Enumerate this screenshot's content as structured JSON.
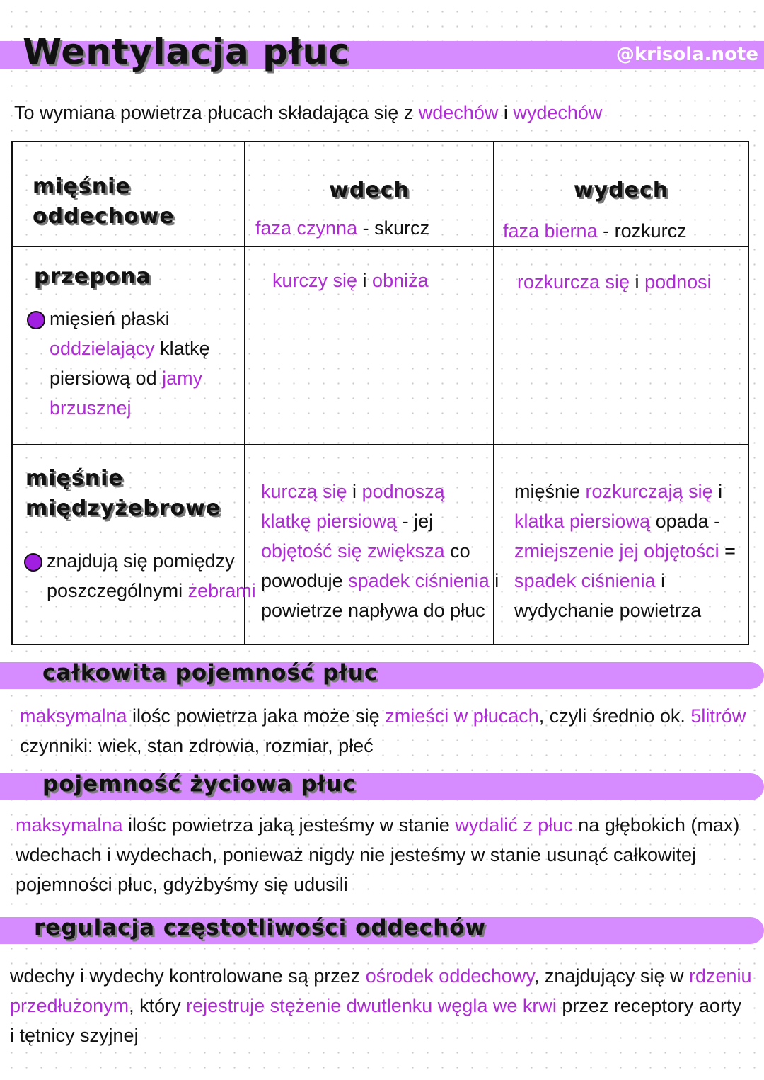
{
  "header": {
    "title": "Wentylacja płuc",
    "handle": "@krisola.note"
  },
  "intro": [
    [
      {
        "t": "To wymiana powietrza płucach składająca się z ",
        "c": "b"
      },
      {
        "t": "wdechów",
        "c": "p"
      },
      {
        "t": " i ",
        "c": "b"
      },
      {
        "t": "wydechów",
        "c": "p"
      }
    ]
  ],
  "table": {
    "headers": {
      "col1": "mięśnie\noddechowe",
      "col2": {
        "title": "wdech",
        "sub": [
          [
            {
              "t": "faza czynna",
              "c": "p"
            },
            {
              "t": " - skurcz",
              "c": "b"
            }
          ]
        ]
      },
      "col3": {
        "title": "wydech",
        "sub": [
          [
            {
              "t": "faza bierna",
              "c": "p"
            },
            {
              "t": " - rozkurcz",
              "c": "b"
            }
          ]
        ]
      }
    },
    "rows": [
      {
        "name": "przepona",
        "desc": [
          [
            {
              "t": "mięsień płaski",
              "c": "b"
            }
          ],
          [
            {
              "t": "oddzielający",
              "c": "p"
            },
            {
              "t": " klatkę",
              "c": "b"
            }
          ],
          [
            {
              "t": "piersiową od ",
              "c": "b"
            },
            {
              "t": "jamy",
              "c": "p"
            }
          ],
          [
            {
              "t": "brzusznej",
              "c": "p"
            }
          ]
        ],
        "wdech": [
          [
            {
              "t": "kurczy się",
              "c": "p"
            },
            {
              "t": " i ",
              "c": "b"
            },
            {
              "t": "obniża",
              "c": "p"
            }
          ]
        ],
        "wydech": [
          [
            {
              "t": "rozkurcza się",
              "c": "p"
            },
            {
              "t": " i ",
              "c": "b"
            },
            {
              "t": "podnosi",
              "c": "p"
            }
          ]
        ]
      },
      {
        "name": "mięśnie\nmiędzyżebrowe",
        "desc": [
          [
            {
              "t": "znajdują się pomiędzy",
              "c": "b"
            }
          ],
          [
            {
              "t": "poszczególnymi ",
              "c": "b"
            },
            {
              "t": "żebrami",
              "c": "p"
            }
          ]
        ],
        "wdech": [
          [
            {
              "t": "kurczą się",
              "c": "p"
            },
            {
              "t": " i ",
              "c": "b"
            },
            {
              "t": "podnoszą",
              "c": "p"
            }
          ],
          [
            {
              "t": "klatkę piersiową",
              "c": "p"
            },
            {
              "t": " - jej",
              "c": "b"
            }
          ],
          [
            {
              "t": "objętość się zwiększa",
              "c": "p"
            },
            {
              "t": " co",
              "c": "b"
            }
          ],
          [
            {
              "t": "powoduje ",
              "c": "b"
            },
            {
              "t": "spadek ciśnienia",
              "c": "p"
            },
            {
              "t": " i",
              "c": "b"
            }
          ],
          [
            {
              "t": "powietrze napływa do płuc",
              "c": "b"
            }
          ]
        ],
        "wydech": [
          [
            {
              "t": "mięśnie ",
              "c": "b"
            },
            {
              "t": "rozkurczają się",
              "c": "p"
            },
            {
              "t": " i",
              "c": "b"
            }
          ],
          [
            {
              "t": "klatka piersiową",
              "c": "p"
            },
            {
              "t": " opada -",
              "c": "b"
            }
          ],
          [
            {
              "t": "zmiejszenie jej objętości",
              "c": "p"
            },
            {
              "t": " =",
              "c": "b"
            }
          ],
          [
            {
              "t": "spadek ciśnienia",
              "c": "p"
            },
            {
              "t": " i",
              "c": "b"
            }
          ],
          [
            {
              "t": "wydychanie powietrza",
              "c": "b"
            }
          ]
        ]
      }
    ]
  },
  "sections": [
    {
      "title": "całkowita pojemność płuc",
      "body": [
        [
          {
            "t": "maksymalna",
            "c": "p"
          },
          {
            "t": " ilośc powietrza jaka może się ",
            "c": "b"
          },
          {
            "t": "zmieści w płucach",
            "c": "p"
          },
          {
            "t": ", czyli średnio ok. ",
            "c": "b"
          },
          {
            "t": "5litrów",
            "c": "p"
          }
        ],
        [
          {
            "t": "czynniki: wiek, stan zdrowia, rozmiar, płeć",
            "c": "b"
          }
        ]
      ]
    },
    {
      "title": "pojemność życiowa płuc",
      "body": [
        [
          {
            "t": "maksymalna",
            "c": "p"
          },
          {
            "t": " ilośc powietrza jaką jesteśmy w stanie ",
            "c": "b"
          },
          {
            "t": "wydalić z płuc",
            "c": "p"
          },
          {
            "t": " na głębokich (max)",
            "c": "b"
          }
        ],
        [
          {
            "t": "wdechach i wydechach, ponieważ nigdy nie jesteśmy w stanie usunąć całkowitej",
            "c": "b"
          }
        ],
        [
          {
            "t": "pojemności płuc, gdyżbyśmy się udusili",
            "c": "b"
          }
        ]
      ]
    },
    {
      "title": "regulacja częstotliwości oddechów",
      "body": [
        [
          {
            "t": "wdechy i wydechy kontrolowane są przez ",
            "c": "b"
          },
          {
            "t": "ośrodek oddechowy",
            "c": "p"
          },
          {
            "t": ", znajdujący się w ",
            "c": "b"
          },
          {
            "t": "rdzeniu",
            "c": "p"
          }
        ],
        [
          {
            "t": "przedłużonym",
            "c": "p"
          },
          {
            "t": ", który ",
            "c": "b"
          },
          {
            "t": "rejestruje stężenie dwutlenku węgla we krwi",
            "c": "p"
          },
          {
            "t": " przez receptory aorty",
            "c": "b"
          }
        ],
        [
          {
            "t": "i tętnicy szyjnej",
            "c": "b"
          }
        ]
      ]
    }
  ],
  "colors": {
    "accent_bar": "#d68cff",
    "highlight_text": "#b12ad8",
    "bullet": "#a11fe0"
  }
}
